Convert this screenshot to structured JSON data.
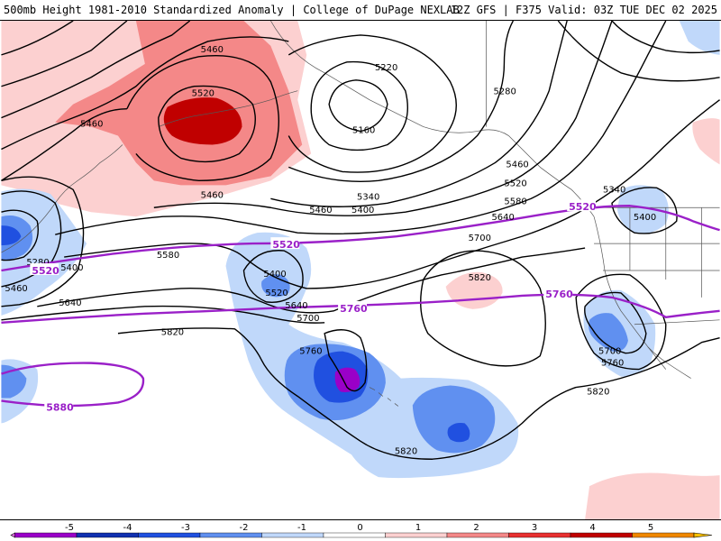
{
  "header": {
    "title": "500mb Height 1981-2010 Standardized Anomaly | College of DuPage NEXLAB",
    "run_info": "12Z GFS | F375 Valid: 03Z TUE DEC 02 2025"
  },
  "contour_labels": {
    "k5460a": "5460",
    "k5460b": "5460",
    "k5460c": "5460",
    "k5460d": "5460",
    "k5460e": "5460",
    "k5460f": "5460",
    "k5520a": "5520",
    "k5520b": "5520",
    "k5220": "5220",
    "k5160": "5160",
    "k5280a": "5280",
    "k5280b": "5280",
    "k5340a": "5340",
    "k5340b": "5340",
    "k5400a": "5400",
    "k5400b": "5400",
    "k5400c": "5400",
    "k5400d": "5400",
    "k5580a": "5580",
    "k5580b": "5580",
    "k5640a": "5640",
    "k5640b": "5640",
    "k5640c": "5640",
    "k5700a": "5700",
    "k5700b": "5700",
    "k5700c": "5700",
    "k5820a": "5820",
    "k5820b": "5820",
    "k5820c": "5820",
    "k5820d": "5820",
    "k5760a": "5760",
    "k5760b": "5760"
  },
  "purple_labels": {
    "p5520a": "5520",
    "p5520b": "5520",
    "p5520c": "5520",
    "p5760a": "5760",
    "p5760b": "5760",
    "p5880": "5880"
  },
  "colorbar": {
    "ticks": [
      "-5",
      "-4",
      "-3",
      "-2",
      "-1",
      "0",
      "1",
      "2",
      "3",
      "4",
      "5"
    ],
    "colors": [
      "#e070e0",
      "#9a00c8",
      "#1030b0",
      "#2050e0",
      "#6090f0",
      "#c0d8fa",
      "#ffffff",
      "#fcd0d0",
      "#f48888",
      "#e83030",
      "#c00000",
      "#f08800",
      "#f8c000"
    ]
  }
}
